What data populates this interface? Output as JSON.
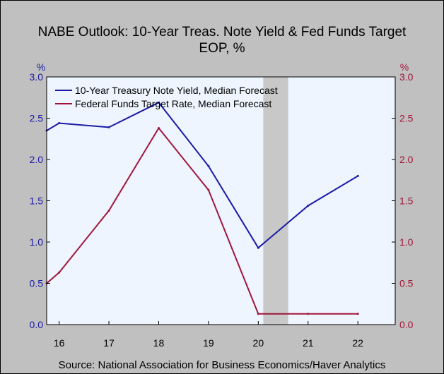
{
  "chart_data": {
    "type": "line",
    "title_line1": "NABE Outlook: 10-Year Treas. Note Yield & Fed Funds Target",
    "title_line2": "EOP, %",
    "ylabel_left": "%",
    "ylabel_right": "%",
    "ylim": [
      0,
      3.0
    ],
    "yticks": [
      "0.0",
      "0.5",
      "1.0",
      "1.5",
      "2.0",
      "2.5",
      "3.0"
    ],
    "x_tick_labels": [
      "16",
      "17",
      "18",
      "19",
      "20",
      "21",
      "22"
    ],
    "x_start": 2015.75,
    "x_end": 2022.75,
    "shaded_region": [
      2020.1,
      2020.6
    ],
    "series": [
      {
        "name": "10-Year Treasury Note Yield, Median Forecast",
        "color": "#1a1aa6",
        "x": [
          2015.75,
          2016,
          2017,
          2018,
          2019,
          2020,
          2021,
          2022
        ],
        "values": [
          2.35,
          2.44,
          2.39,
          2.69,
          1.92,
          0.93,
          1.44,
          1.8
        ]
      },
      {
        "name": "Federal Funds Target Rate, Median Forecast",
        "color": "#a0163a",
        "x": [
          2015.75,
          2016,
          2017,
          2018,
          2019,
          2020,
          2021,
          2022
        ],
        "values": [
          0.5,
          0.63,
          1.38,
          2.38,
          1.63,
          0.13,
          0.13,
          0.13
        ]
      }
    ],
    "grid": false,
    "legend_position": "top-left",
    "source": "Source:  National Association for Business Economics/Haver Analytics"
  }
}
